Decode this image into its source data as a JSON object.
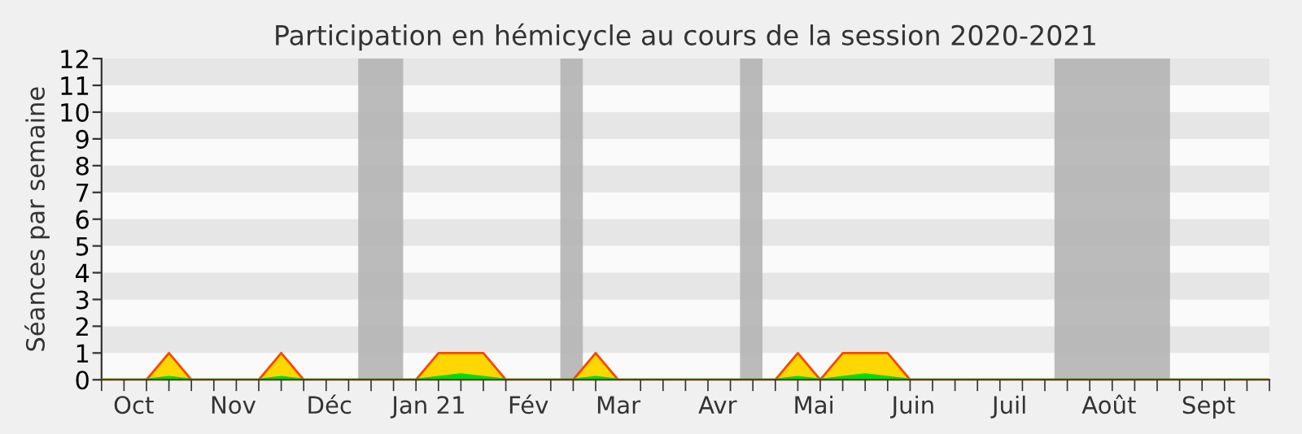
{
  "chart_data": {
    "type": "area",
    "title": "Participation en hémicycle au cours de la session 2020-2021",
    "ylabel": "Séances par semaine",
    "x": [
      "2020-09-21",
      "2020-09-28",
      "2020-10-05",
      "2020-10-12",
      "2020-10-19",
      "2020-10-26",
      "2020-11-02",
      "2020-11-09",
      "2020-11-16",
      "2020-11-23",
      "2020-11-30",
      "2020-12-07",
      "2020-12-14",
      "2020-12-21",
      "2020-12-28",
      "2021-01-04",
      "2021-01-11",
      "2021-01-18",
      "2021-01-25",
      "2021-02-01",
      "2021-02-08",
      "2021-02-15",
      "2021-02-22",
      "2021-03-01",
      "2021-03-08",
      "2021-03-15",
      "2021-03-22",
      "2021-03-29",
      "2021-04-05",
      "2021-04-12",
      "2021-04-19",
      "2021-04-26",
      "2021-05-03",
      "2021-05-10",
      "2021-05-17",
      "2021-05-24",
      "2021-05-31",
      "2021-06-07",
      "2021-06-14",
      "2021-06-21",
      "2021-06-28",
      "2021-07-05",
      "2021-07-12",
      "2021-07-19",
      "2021-07-26",
      "2021-08-02",
      "2021-08-09",
      "2021-08-16",
      "2021-08-23",
      "2021-08-30",
      "2021-09-06",
      "2021-09-13",
      "2021-09-20"
    ],
    "series": [
      {
        "color": "#ffd700",
        "values": [
          0,
          0,
          0,
          1,
          0,
          0,
          0,
          0,
          1,
          0,
          0,
          0,
          0,
          0,
          0,
          1,
          1,
          1,
          0,
          0,
          0,
          0,
          1,
          0,
          0,
          0,
          0,
          0,
          0,
          0,
          0,
          1,
          0,
          1,
          1,
          1,
          0,
          0,
          0,
          0,
          0,
          0,
          0,
          0,
          0,
          0,
          0,
          0,
          0,
          0,
          0,
          0,
          0
        ]
      },
      {
        "color": "#00dd00",
        "values": [
          0,
          0,
          0,
          0.1,
          0,
          0,
          0,
          0,
          0.1,
          0,
          0,
          0,
          0,
          0,
          0,
          0.1,
          0.2,
          0.1,
          0,
          0,
          0,
          0,
          0.1,
          0,
          0,
          0,
          0,
          0,
          0,
          0,
          0,
          0.1,
          0,
          0.1,
          0.2,
          0.1,
          0,
          0,
          0,
          0,
          0,
          0,
          0,
          0,
          0,
          0,
          0,
          0,
          0,
          0,
          0,
          0,
          0
        ]
      }
    ],
    "xlim": [
      "2020-09-21",
      "2021-09-20"
    ],
    "ylim": [
      0,
      12
    ],
    "yticks": [
      0,
      1,
      2,
      3,
      4,
      5,
      6,
      7,
      8,
      9,
      10,
      11,
      12
    ],
    "xticks": [
      {
        "value": "2020-10-01",
        "label": "Oct"
      },
      {
        "value": "2020-11-01",
        "label": "Nov"
      },
      {
        "value": "2020-12-01",
        "label": "Déc"
      },
      {
        "value": "2021-01-01",
        "label": "Jan 21"
      },
      {
        "value": "2021-02-01",
        "label": "Fév"
      },
      {
        "value": "2021-03-01",
        "label": "Mar"
      },
      {
        "value": "2021-04-01",
        "label": "Avr"
      },
      {
        "value": "2021-05-01",
        "label": "Mai"
      },
      {
        "value": "2021-06-01",
        "label": "Juin"
      },
      {
        "value": "2021-07-01",
        "label": "Juil"
      },
      {
        "value": "2021-08-01",
        "label": "Août"
      },
      {
        "value": "2021-09-01",
        "label": "Sept"
      }
    ],
    "bands": [
      {
        "axis": "x",
        "from": "2020-12-10",
        "to": "2020-12-24",
        "color": "#b4b4b4"
      },
      {
        "axis": "x",
        "from": "2021-02-11",
        "to": "2021-02-18",
        "color": "#b4b4b4"
      },
      {
        "axis": "x",
        "from": "2021-04-08",
        "to": "2021-04-15",
        "color": "#b4b4b4"
      },
      {
        "axis": "x",
        "from": "2021-07-15",
        "to": "2021-08-20",
        "color": "#b4b4b4"
      },
      {
        "axis": "y",
        "from": 1,
        "to": 2,
        "color": "#e6e6e6"
      },
      {
        "axis": "y",
        "from": 3,
        "to": 4,
        "color": "#e6e6e6"
      },
      {
        "axis": "y",
        "from": 5,
        "to": 6,
        "color": "#e6e6e6"
      },
      {
        "axis": "y",
        "from": 7,
        "to": 8,
        "color": "#e6e6e6"
      },
      {
        "axis": "y",
        "from": 9,
        "to": 10,
        "color": "#e6e6e6"
      },
      {
        "axis": "y",
        "from": 11,
        "to": 12,
        "color": "#e6e6e6"
      }
    ],
    "legend": false
  }
}
